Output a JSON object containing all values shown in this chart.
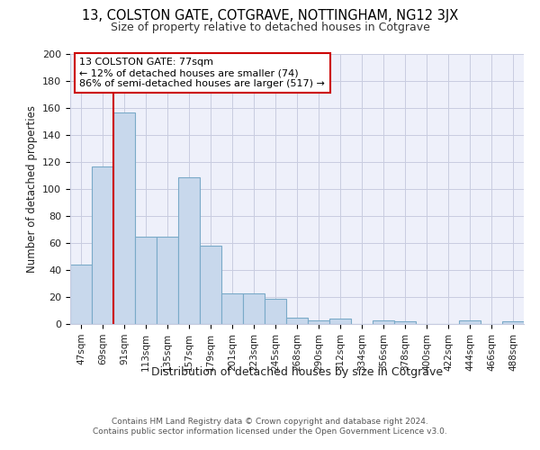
{
  "title1": "13, COLSTON GATE, COTGRAVE, NOTTINGHAM, NG12 3JX",
  "title2": "Size of property relative to detached houses in Cotgrave",
  "xlabel": "Distribution of detached houses by size in Cotgrave",
  "ylabel": "Number of detached properties",
  "categories": [
    "47sqm",
    "69sqm",
    "91sqm",
    "113sqm",
    "135sqm",
    "157sqm",
    "179sqm",
    "201sqm",
    "223sqm",
    "245sqm",
    "268sqm",
    "290sqm",
    "312sqm",
    "334sqm",
    "356sqm",
    "378sqm",
    "400sqm",
    "422sqm",
    "444sqm",
    "466sqm",
    "488sqm"
  ],
  "values": [
    44,
    117,
    157,
    65,
    65,
    109,
    58,
    23,
    23,
    19,
    5,
    3,
    4,
    0,
    3,
    2,
    0,
    0,
    3,
    0,
    2
  ],
  "bar_color": "#c8d8ec",
  "bar_edge_color": "#7aaac8",
  "vline_x_index": 1.5,
  "vline_color": "#cc0000",
  "annotation_text": "13 COLSTON GATE: 77sqm\n← 12% of detached houses are smaller (74)\n86% of semi-detached houses are larger (517) →",
  "annotation_box_color": "#ffffff",
  "annotation_box_edge": "#cc0000",
  "ylim": [
    0,
    200
  ],
  "yticks": [
    0,
    20,
    40,
    60,
    80,
    100,
    120,
    140,
    160,
    180,
    200
  ],
  "grid_color": "#c8cce0",
  "bg_color": "#eef0fa",
  "footer1": "Contains HM Land Registry data © Crown copyright and database right 2024.",
  "footer2": "Contains public sector information licensed under the Open Government Licence v3.0."
}
